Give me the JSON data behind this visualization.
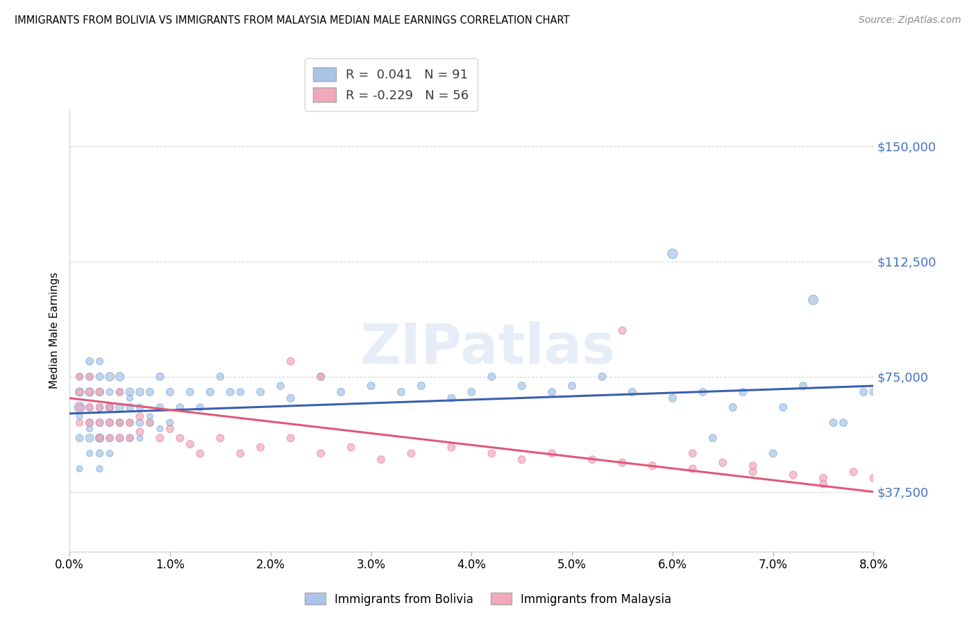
{
  "title": "IMMIGRANTS FROM BOLIVIA VS IMMIGRANTS FROM MALAYSIA MEDIAN MALE EARNINGS CORRELATION CHART",
  "source": "Source: ZipAtlas.com",
  "ylabel": "Median Male Earnings",
  "xlim": [
    0.0,
    0.08
  ],
  "ylim": [
    18000,
    162000
  ],
  "yticks": [
    37500,
    75000,
    112500,
    150000
  ],
  "ytick_labels": [
    "$37,500",
    "$75,000",
    "$112,500",
    "$150,000"
  ],
  "xticks": [
    0.0,
    0.01,
    0.02,
    0.03,
    0.04,
    0.05,
    0.06,
    0.07,
    0.08
  ],
  "xtick_labels": [
    "0.0%",
    "1.0%",
    "2.0%",
    "3.0%",
    "4.0%",
    "5.0%",
    "6.0%",
    "7.0%",
    "8.0%"
  ],
  "bolivia_color": "#aac4e8",
  "malaysia_color": "#f2a8bc",
  "bolivia_edge_color": "#7aaad0",
  "malaysia_edge_color": "#e088a0",
  "bolivia_line_color": "#3a5fb0",
  "malaysia_line_color": "#e05878",
  "R_bolivia": 0.041,
  "N_bolivia": 91,
  "R_malaysia": -0.229,
  "N_malaysia": 56,
  "legend_label_bolivia": "Immigrants from Bolivia",
  "legend_label_malaysia": "Immigrants from Malaysia",
  "watermark": "ZIPatlas",
  "bolivia_trend": [
    63000,
    72000
  ],
  "malaysia_trend": [
    68000,
    37500
  ],
  "bolivia_x": [
    0.001,
    0.001,
    0.001,
    0.001,
    0.001,
    0.002,
    0.002,
    0.002,
    0.002,
    0.002,
    0.002,
    0.002,
    0.003,
    0.003,
    0.003,
    0.003,
    0.003,
    0.003,
    0.003,
    0.003,
    0.003,
    0.004,
    0.004,
    0.004,
    0.004,
    0.004,
    0.004,
    0.005,
    0.005,
    0.005,
    0.005,
    0.005,
    0.006,
    0.006,
    0.006,
    0.006,
    0.007,
    0.007,
    0.007,
    0.008,
    0.008,
    0.009,
    0.009,
    0.01,
    0.01,
    0.011,
    0.012,
    0.013,
    0.014,
    0.015,
    0.016,
    0.017,
    0.019,
    0.021,
    0.022,
    0.025,
    0.027,
    0.03,
    0.033,
    0.035,
    0.038,
    0.04,
    0.042,
    0.045,
    0.048,
    0.05,
    0.053,
    0.056,
    0.06,
    0.063,
    0.066,
    0.07,
    0.073,
    0.076,
    0.079,
    0.06,
    0.064,
    0.067,
    0.071,
    0.074,
    0.077,
    0.08,
    0.001,
    0.002,
    0.003,
    0.004,
    0.005,
    0.006,
    0.007,
    0.008,
    0.009
  ],
  "bolivia_y": [
    65000,
    70000,
    75000,
    55000,
    45000,
    60000,
    65000,
    70000,
    55000,
    75000,
    80000,
    50000,
    55000,
    60000,
    65000,
    70000,
    75000,
    80000,
    55000,
    50000,
    45000,
    60000,
    65000,
    70000,
    75000,
    50000,
    55000,
    60000,
    65000,
    70000,
    55000,
    75000,
    60000,
    65000,
    70000,
    55000,
    60000,
    65000,
    70000,
    60000,
    70000,
    65000,
    75000,
    60000,
    70000,
    65000,
    70000,
    65000,
    70000,
    75000,
    70000,
    70000,
    70000,
    72000,
    68000,
    75000,
    70000,
    72000,
    70000,
    72000,
    68000,
    70000,
    75000,
    72000,
    70000,
    72000,
    75000,
    70000,
    68000,
    70000,
    65000,
    50000,
    72000,
    60000,
    70000,
    115000,
    55000,
    70000,
    65000,
    100000,
    60000,
    70000,
    62000,
    58000,
    55000,
    65000,
    60000,
    68000,
    55000,
    62000,
    58000
  ],
  "bolivia_size": [
    120,
    80,
    50,
    60,
    40,
    60,
    50,
    80,
    70,
    50,
    60,
    40,
    80,
    60,
    50,
    70,
    60,
    50,
    40,
    55,
    45,
    60,
    70,
    50,
    80,
    45,
    55,
    60,
    70,
    50,
    60,
    80,
    50,
    60,
    70,
    45,
    60,
    50,
    70,
    50,
    60,
    55,
    65,
    50,
    60,
    55,
    60,
    55,
    60,
    55,
    60,
    55,
    60,
    55,
    60,
    60,
    60,
    60,
    60,
    60,
    60,
    60,
    60,
    60,
    60,
    60,
    60,
    60,
    60,
    60,
    60,
    60,
    60,
    60,
    60,
    100,
    60,
    60,
    60,
    100,
    60,
    60,
    40,
    40,
    40,
    40,
    40,
    40,
    40,
    40,
    40
  ],
  "malaysia_x": [
    0.001,
    0.001,
    0.001,
    0.001,
    0.002,
    0.002,
    0.002,
    0.002,
    0.003,
    0.003,
    0.003,
    0.003,
    0.004,
    0.004,
    0.004,
    0.005,
    0.005,
    0.005,
    0.006,
    0.006,
    0.007,
    0.007,
    0.008,
    0.009,
    0.01,
    0.011,
    0.012,
    0.013,
    0.015,
    0.017,
    0.019,
    0.022,
    0.025,
    0.028,
    0.031,
    0.034,
    0.038,
    0.042,
    0.045,
    0.048,
    0.052,
    0.055,
    0.058,
    0.062,
    0.065,
    0.068,
    0.072,
    0.075,
    0.078,
    0.08,
    0.022,
    0.025,
    0.055,
    0.062,
    0.068,
    0.075
  ],
  "malaysia_y": [
    70000,
    65000,
    60000,
    75000,
    70000,
    65000,
    60000,
    75000,
    65000,
    60000,
    55000,
    70000,
    60000,
    55000,
    65000,
    60000,
    55000,
    70000,
    60000,
    55000,
    62000,
    57000,
    60000,
    55000,
    58000,
    55000,
    53000,
    50000,
    55000,
    50000,
    52000,
    55000,
    50000,
    52000,
    48000,
    50000,
    52000,
    50000,
    48000,
    50000,
    48000,
    47000,
    46000,
    45000,
    47000,
    44000,
    43000,
    42000,
    44000,
    42000,
    80000,
    75000,
    90000,
    50000,
    46000,
    40000
  ],
  "malaysia_size": [
    50,
    50,
    50,
    50,
    60,
    60,
    60,
    60,
    60,
    60,
    60,
    60,
    60,
    60,
    60,
    60,
    60,
    60,
    60,
    60,
    60,
    60,
    60,
    60,
    60,
    60,
    60,
    60,
    60,
    60,
    60,
    60,
    60,
    60,
    60,
    60,
    60,
    60,
    60,
    60,
    60,
    60,
    60,
    60,
    60,
    60,
    60,
    60,
    60,
    60,
    60,
    60,
    60,
    60,
    60,
    60
  ]
}
